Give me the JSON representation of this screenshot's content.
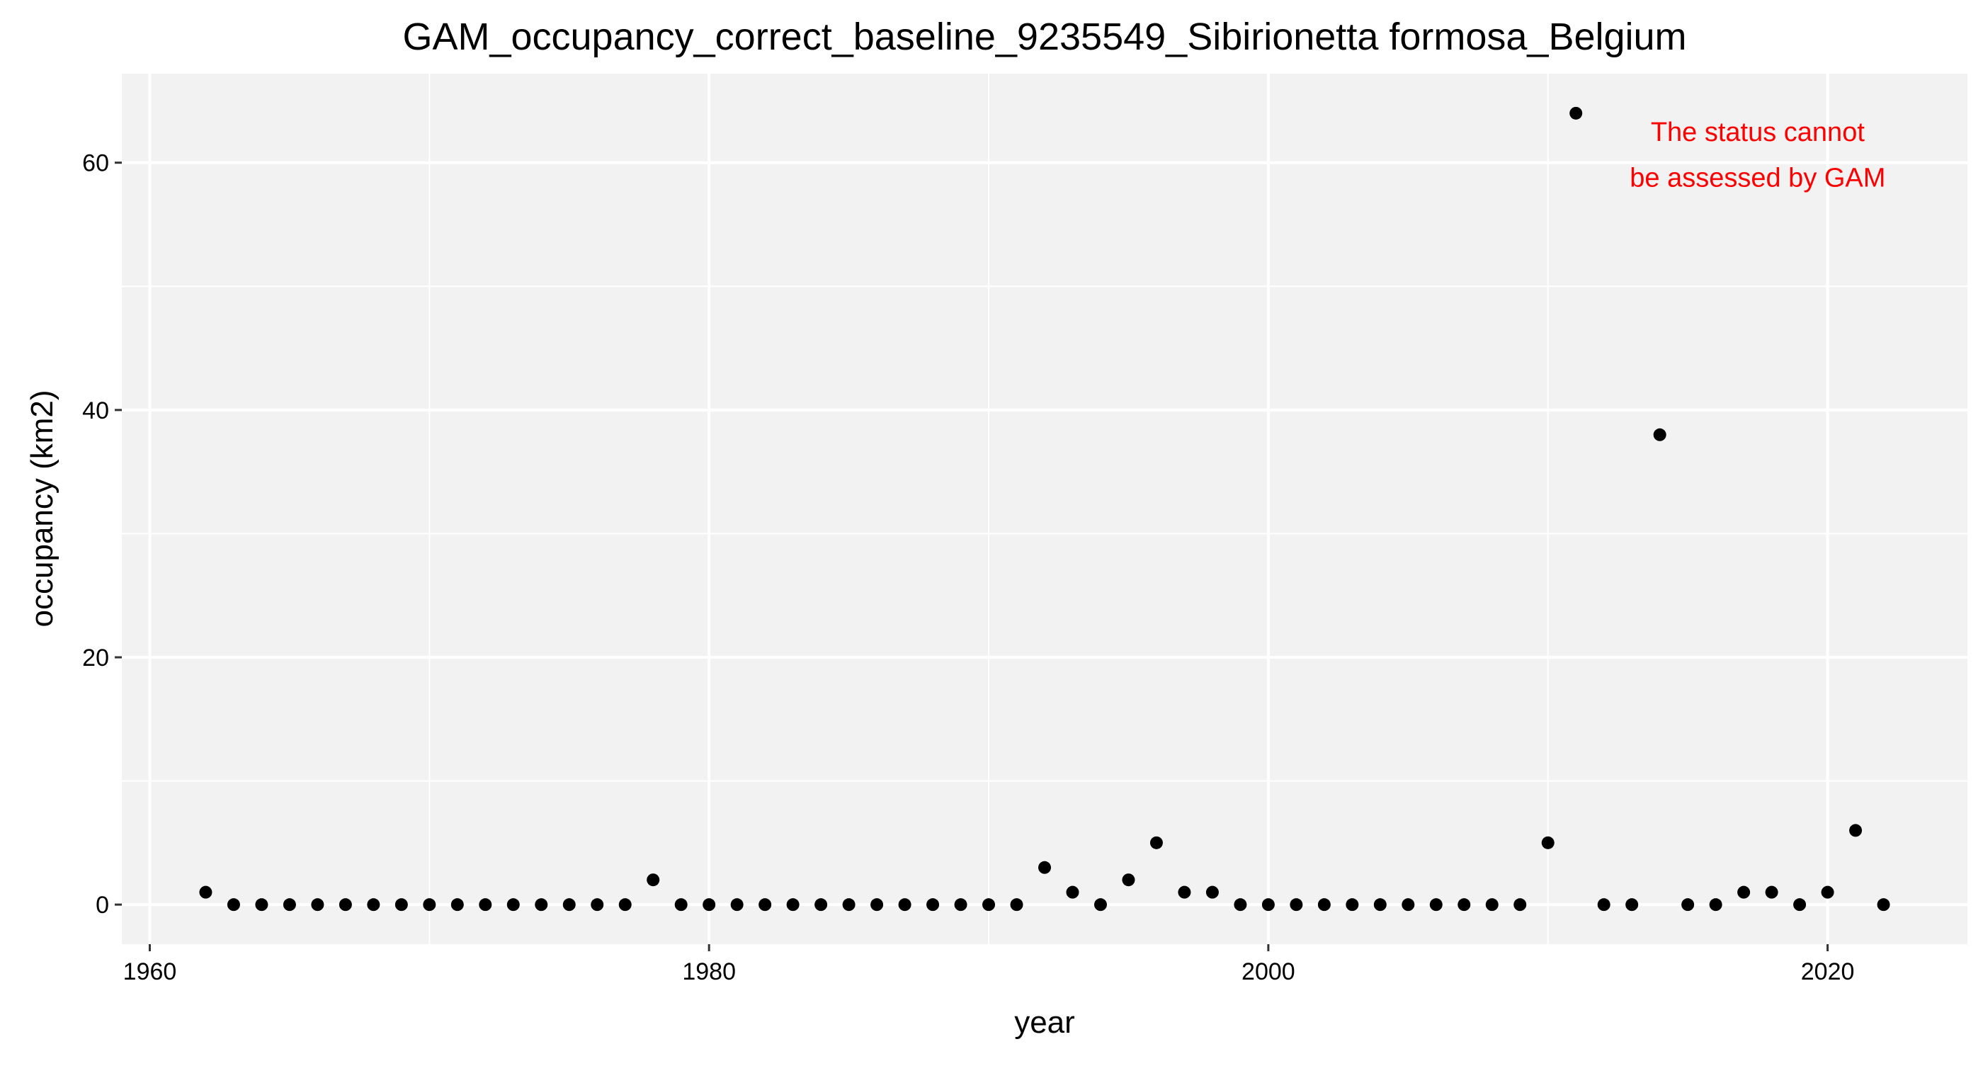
{
  "chart_data": {
    "type": "scatter",
    "title": "GAM_occupancy_correct_baseline_9235549_Sibirionetta formosa_Belgium",
    "xlabel": "year",
    "ylabel": "occupancy (km2)",
    "xlim": [
      1959,
      2025
    ],
    "ylim": [
      -3.2,
      67.2
    ],
    "x_ticks": [
      1960,
      1980,
      2000,
      2020
    ],
    "y_ticks": [
      0,
      20,
      40,
      60
    ],
    "grid": true,
    "legend": "none",
    "colors": {
      "panel_background": "#f2f2f2",
      "grid_line": "#ffffff",
      "point": "#000000",
      "annotation": "#ff0000",
      "axis_tick": "#333333"
    },
    "annotation": {
      "lines": [
        "The status cannot",
        "be assessed by GAM"
      ],
      "x": 2017.5,
      "y_lines": [
        62.5,
        58.8
      ]
    },
    "x": [
      1962,
      1963,
      1964,
      1965,
      1966,
      1967,
      1968,
      1969,
      1970,
      1971,
      1972,
      1973,
      1974,
      1975,
      1976,
      1977,
      1978,
      1979,
      1980,
      1981,
      1982,
      1983,
      1984,
      1985,
      1986,
      1987,
      1988,
      1989,
      1990,
      1991,
      1992,
      1993,
      1994,
      1995,
      1996,
      1997,
      1998,
      1999,
      2000,
      2001,
      2002,
      2003,
      2004,
      2005,
      2006,
      2007,
      2008,
      2009,
      2010,
      2011,
      2012,
      2013,
      2014,
      2015,
      2016,
      2017,
      2018,
      2019,
      2020,
      2021,
      2022
    ],
    "y": [
      1,
      0,
      0,
      0,
      0,
      0,
      0,
      0,
      0,
      0,
      0,
      0,
      0,
      0,
      0,
      0,
      2,
      0,
      0,
      0,
      0,
      0,
      0,
      0,
      0,
      0,
      0,
      0,
      0,
      0,
      3,
      1,
      0,
      2,
      5,
      1,
      1,
      0,
      0,
      0,
      0,
      0,
      0,
      0,
      0,
      0,
      0,
      0,
      5,
      64,
      0,
      0,
      38,
      0,
      0,
      1,
      1,
      0,
      1,
      6,
      0
    ]
  }
}
